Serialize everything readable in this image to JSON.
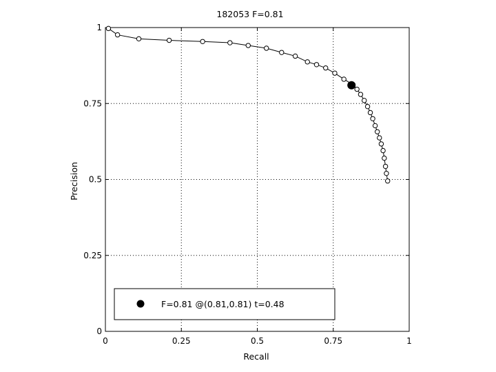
{
  "chart_data": {
    "type": "line",
    "title": "182053 F=0.81",
    "xlabel": "Recall",
    "ylabel": "Precision",
    "xlim": [
      0,
      1
    ],
    "ylim": [
      0,
      1
    ],
    "xticks": [
      0,
      0.25,
      0.5,
      0.75,
      1
    ],
    "yticks": [
      0,
      0.25,
      0.5,
      0.75,
      1
    ],
    "xtick_labels": [
      "0",
      "0.25",
      "0.5",
      "0.75",
      "1"
    ],
    "ytick_labels": [
      "0",
      "0.25",
      "0.5",
      "0.75",
      "1"
    ],
    "grid": true,
    "grid_style": "dotted",
    "legend_position": "bottom-left",
    "series": [
      {
        "marker": "open-circle",
        "color": "#000000",
        "x": [
          0.01,
          0.04,
          0.11,
          0.21,
          0.32,
          0.41,
          0.47,
          0.53,
          0.58,
          0.625,
          0.665,
          0.695,
          0.725,
          0.755,
          0.785,
          0.815,
          0.828,
          0.84,
          0.852,
          0.863,
          0.872,
          0.88,
          0.888,
          0.895,
          0.902,
          0.908,
          0.914,
          0.918,
          0.922,
          0.925,
          0.929
        ],
        "y": [
          0.997,
          0.976,
          0.963,
          0.958,
          0.954,
          0.95,
          0.941,
          0.932,
          0.918,
          0.906,
          0.887,
          0.878,
          0.867,
          0.85,
          0.83,
          0.812,
          0.797,
          0.78,
          0.76,
          0.74,
          0.72,
          0.7,
          0.677,
          0.657,
          0.637,
          0.617,
          0.595,
          0.57,
          0.543,
          0.52,
          0.495
        ]
      }
    ],
    "best_point": {
      "x": 0.81,
      "y": 0.81,
      "marker": "filled-circle",
      "color": "#000000"
    },
    "legend": {
      "label": "F=0.81 @(0.81,0.81) t=0.48"
    }
  }
}
